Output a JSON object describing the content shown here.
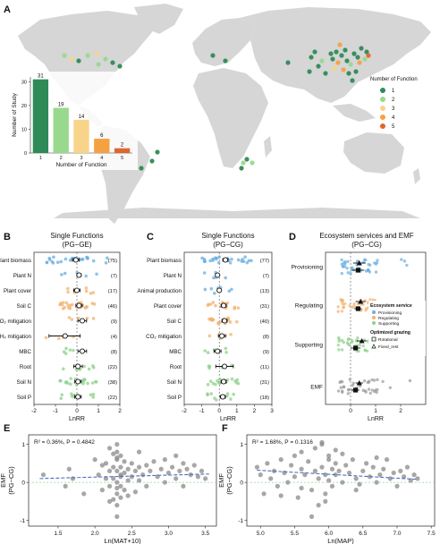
{
  "panel_letters": {
    "a": "A",
    "b": "B",
    "c": "C",
    "d": "D",
    "e": "E",
    "f": "F"
  },
  "colors": {
    "land": "#d6d6d6",
    "nf1": "#2e8b57",
    "nf2": "#98d98e",
    "nf3": "#f7d48a",
    "nf4": "#f5a142",
    "nf5": "#e0662b",
    "provisioning": "#6aaee0",
    "regulating": "#f3b06e",
    "supporting": "#8fd08b",
    "emf": "#9a9a9a",
    "trend": "#4a6fc1"
  },
  "map_legend": {
    "title": "Number of Function",
    "items": [
      "1",
      "2",
      "3",
      "4",
      "5"
    ]
  },
  "chart_data": [
    {
      "id": "study_count_bar",
      "type": "bar",
      "categories": [
        "1",
        "2",
        "3",
        "4",
        "5"
      ],
      "values": [
        31,
        19,
        14,
        6,
        2
      ],
      "xlabel": "Number of Function",
      "ylabel": "Number of Study",
      "ylim": [
        0,
        32
      ],
      "yticks": [
        0,
        10,
        20,
        30
      ]
    },
    {
      "id": "single_functions_ge",
      "type": "scatter",
      "title": "Single Functions",
      "subtitle": "(PG−GE)",
      "categories": [
        "Plant biomass",
        "Plant N",
        "Plant cover",
        "Soil C",
        "CO₂ mitigation",
        "CH₄ mitigation",
        "MBC",
        "Root",
        "Soil N",
        "Soil P"
      ],
      "n": [
        "(75)",
        "(7)",
        "(17)",
        "(46)",
        "(9)",
        "(4)",
        "(8)",
        "(22)",
        "(38)",
        "(22)"
      ],
      "groups": [
        "provisioning",
        "provisioning",
        "regulating",
        "regulating",
        "regulating",
        "regulating",
        "supporting",
        "supporting",
        "supporting",
        "supporting"
      ],
      "mean": [
        -0.05,
        0.1,
        0.0,
        0.1,
        0.25,
        -0.55,
        0.25,
        0.05,
        0.05,
        0.05
      ],
      "ci_low": [
        -0.2,
        0.0,
        -0.15,
        -0.05,
        0.05,
        -1.3,
        0.05,
        -0.15,
        -0.1,
        -0.1
      ],
      "ci_high": [
        0.1,
        0.2,
        0.15,
        0.25,
        0.45,
        0.15,
        0.45,
        0.25,
        0.2,
        0.2
      ],
      "xlabel": "LnRR",
      "xlim": [
        -2,
        2
      ],
      "xticks": [
        -2,
        -1,
        0,
        1,
        2
      ]
    },
    {
      "id": "single_functions_cg",
      "type": "scatter",
      "title": "Single Functions",
      "subtitle": "(PG−CG)",
      "categories": [
        "Plant biomass",
        "Plant N",
        "Animal production",
        "Plant cover",
        "Soil C",
        "CO₂ mitigation",
        "MBC",
        "Root",
        "Soil N",
        "Soil P"
      ],
      "n": [
        "(77)",
        "(7)",
        "(13)",
        "(31)",
        "(40)",
        "(8)",
        "(9)",
        "(11)",
        "(31)",
        "(18)"
      ],
      "groups": [
        "provisioning",
        "provisioning",
        "provisioning",
        "regulating",
        "regulating",
        "regulating",
        "supporting",
        "supporting",
        "supporting",
        "supporting"
      ],
      "mean": [
        0.35,
        -0.1,
        0.0,
        0.25,
        0.3,
        0.15,
        -0.1,
        0.3,
        0.25,
        0.2
      ],
      "ci_low": [
        0.2,
        -0.2,
        -0.1,
        0.1,
        0.15,
        -0.05,
        -0.3,
        -0.2,
        0.1,
        0.05
      ],
      "ci_high": [
        0.5,
        0.0,
        0.1,
        0.4,
        0.45,
        0.35,
        0.1,
        0.8,
        0.4,
        0.35
      ],
      "xlabel": "LnRR",
      "xlim": [
        -2,
        3
      ],
      "xticks": [
        -2,
        -1,
        0,
        1,
        2,
        3
      ]
    },
    {
      "id": "ecosystem_services_emf",
      "type": "scatter",
      "title": "Ecosystem services and EMF",
      "subtitle": "(PG−CG)",
      "categories": [
        "Provisioning",
        "Regulating",
        "Supporting",
        "EMF"
      ],
      "series": [
        {
          "name": "Rotational",
          "mean": [
            0.35,
            0.4,
            0.45,
            0.35
          ],
          "ci_low": [
            0.1,
            0.2,
            0.25,
            0.2
          ],
          "ci_high": [
            0.6,
            0.6,
            0.65,
            0.5
          ]
        },
        {
          "name": "Fixed_rest",
          "mean": [
            0.3,
            0.3,
            0.2,
            0.2
          ],
          "ci_low": [
            0.05,
            0.15,
            0.0,
            0.05
          ],
          "ci_high": [
            0.55,
            0.45,
            0.4,
            0.35
          ]
        }
      ],
      "xlabel": "LnRR",
      "xlim": [
        -1,
        3
      ],
      "xticks": [
        0,
        1,
        2
      ],
      "legend": {
        "service_title": "Ecosystem service",
        "services": [
          "Provisioning",
          "Regulating",
          "Supporting"
        ],
        "grazing_title": "Optimized grazing",
        "grazing": [
          "Rotational",
          "Fixed_rest"
        ]
      }
    },
    {
      "id": "emf_vs_mat",
      "type": "scatter",
      "annotation": "R² = 0.36%, P = 0.4842",
      "xlabel": "Ln(MAT+10)",
      "ylabel": "EMF",
      "ylabel2": "(PG−CG)",
      "xlim": [
        1.1,
        3.65
      ],
      "ylim": [
        -1.15,
        1.25
      ],
      "xticks": [
        1.5,
        2.0,
        2.5,
        3.0,
        3.5
      ],
      "yticks": [
        -1,
        0,
        1
      ],
      "trend": {
        "x0": 1.25,
        "y0": 0.1,
        "x1": 3.55,
        "y1": 0.22
      },
      "x": [
        1.3,
        1.6,
        1.65,
        1.7,
        1.85,
        2.0,
        2.05,
        2.1,
        2.1,
        2.15,
        2.15,
        2.2,
        2.2,
        2.2,
        2.25,
        2.25,
        2.25,
        2.3,
        2.3,
        2.3,
        2.3,
        2.3,
        2.3,
        2.3,
        2.3,
        2.35,
        2.35,
        2.35,
        2.35,
        2.35,
        2.4,
        2.4,
        2.4,
        2.45,
        2.45,
        2.5,
        2.5,
        2.55,
        2.55,
        2.6,
        2.6,
        2.6,
        2.65,
        2.7,
        2.7,
        2.75,
        2.8,
        2.85,
        2.9,
        2.95,
        2.95,
        3.0,
        3.05,
        3.1,
        3.1,
        3.15,
        3.2,
        3.2,
        3.25,
        3.3,
        3.35,
        3.4,
        3.45,
        3.5,
        2.3,
        2.3,
        2.35,
        2.2,
        2.25,
        2.45
      ],
      "y": [
        0.2,
        -0.1,
        0.35,
        0.1,
        -0.3,
        0.6,
        0.2,
        -0.2,
        0.45,
        0.1,
        0.5,
        0.9,
        0.3,
        -0.1,
        0.4,
        0.1,
        -0.45,
        1.0,
        0.8,
        0.6,
        0.3,
        0.0,
        -0.3,
        -0.6,
        -0.9,
        0.7,
        0.4,
        0.2,
        -0.1,
        -0.4,
        0.55,
        0.25,
        -0.2,
        0.35,
        0.05,
        0.5,
        0.15,
        0.3,
        -0.25,
        0.8,
        0.4,
        0.05,
        0.2,
        0.45,
        -0.1,
        0.3,
        0.55,
        0.15,
        0.35,
        0.0,
        0.6,
        0.25,
        0.4,
        0.7,
        0.1,
        0.3,
        0.5,
        -0.1,
        0.35,
        0.2,
        0.45,
        0.15,
        0.3,
        0.1,
        -0.15,
        0.65,
        0.15,
        -0.5,
        0.75,
        -0.35
      ]
    },
    {
      "id": "emf_vs_map",
      "type": "scatter",
      "annotation": "R² = 1.68%, P = 0.1316",
      "xlabel": "Ln(MAP)",
      "ylabel": "EMF",
      "ylabel2": "(PG−CG)",
      "xlim": [
        4.8,
        7.55
      ],
      "ylim": [
        -1.15,
        1.25
      ],
      "xticks": [
        5.0,
        5.5,
        6.0,
        6.5,
        7.0,
        7.5
      ],
      "yticks": [
        -1,
        0,
        1
      ],
      "trend": {
        "x0": 4.95,
        "y0": 0.32,
        "x1": 7.3,
        "y1": 0.08
      },
      "x": [
        4.95,
        5.0,
        5.05,
        5.1,
        5.15,
        5.2,
        5.25,
        5.3,
        5.35,
        5.4,
        5.45,
        5.5,
        5.5,
        5.55,
        5.6,
        5.6,
        5.65,
        5.7,
        5.75,
        5.8,
        5.8,
        5.85,
        5.85,
        5.9,
        5.9,
        5.95,
        5.95,
        6.0,
        6.0,
        6.05,
        6.05,
        6.1,
        6.1,
        6.15,
        6.2,
        6.25,
        6.3,
        6.35,
        6.4,
        6.45,
        6.5,
        6.55,
        6.6,
        6.65,
        6.7,
        6.75,
        6.8,
        6.85,
        6.9,
        6.95,
        7.0,
        7.05,
        7.1,
        7.15,
        7.2,
        7.25,
        7.3,
        5.75,
        5.95,
        6.0,
        6.1,
        5.9,
        6.4,
        6.7,
        5.6,
        6.2,
        5.3
      ],
      "y": [
        0.4,
        0.2,
        -0.3,
        0.5,
        0.1,
        0.3,
        -0.1,
        0.6,
        0.25,
        0.0,
        0.45,
        0.7,
        0.15,
        -0.4,
        0.35,
        0.8,
        0.2,
        0.55,
        -0.2,
        0.9,
        0.3,
        0.1,
        -0.6,
        0.4,
        1.0,
        0.2,
        -0.3,
        0.6,
        0.05,
        0.35,
        -0.1,
        0.5,
        0.2,
        0.3,
        0.0,
        0.45,
        0.25,
        0.6,
        0.1,
        -0.05,
        0.3,
        0.5,
        0.15,
        0.4,
        0.0,
        0.2,
        0.35,
        0.6,
        0.1,
        0.25,
        -0.1,
        0.3,
        0.15,
        0.4,
        0.05,
        0.2,
        0.1,
        -0.9,
        -0.5,
        0.7,
        0.85,
        1.05,
        -0.2,
        0.65,
        -0.15,
        0.75,
        -0.35
      ]
    }
  ]
}
